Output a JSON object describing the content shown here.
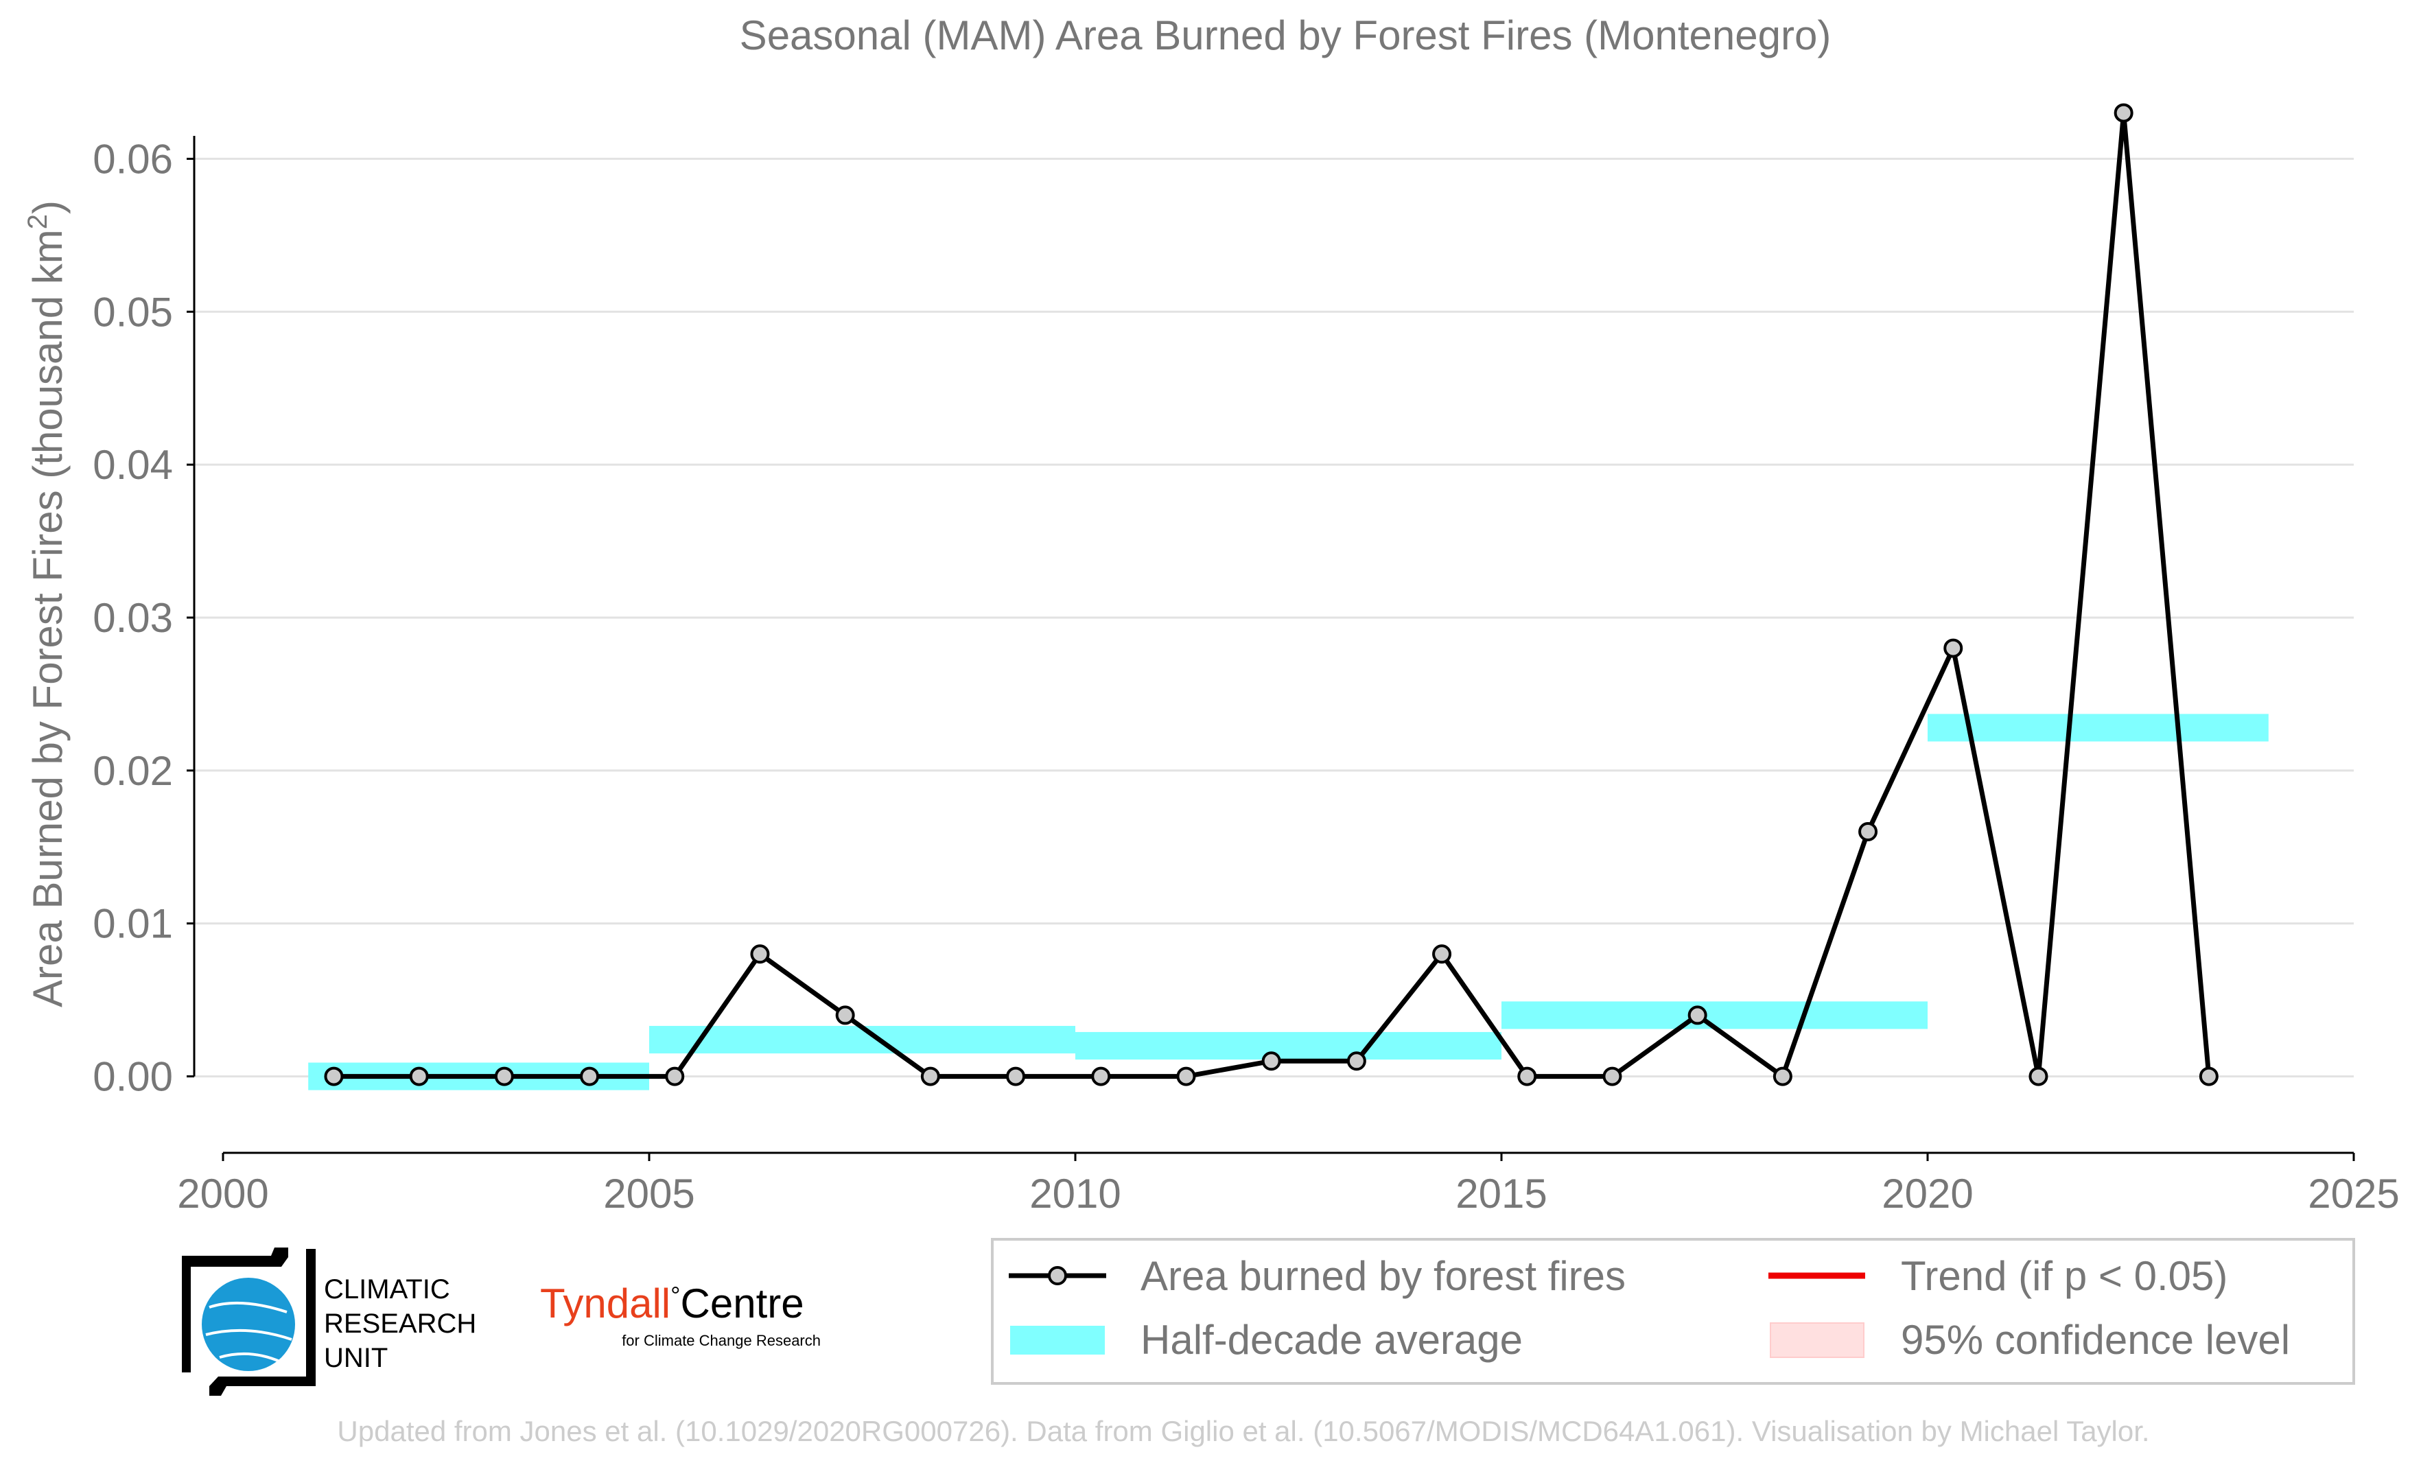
{
  "chart_data": {
    "type": "line",
    "title": "Seasonal (MAM) Area Burned by Forest Fires (Montenegro)",
    "xlabel": "",
    "ylabel": "Area Burned by Forest Fires (thousand km",
    "ylabel_superscript": "2",
    "ylabel_close": ")",
    "xlim": [
      2000,
      2025
    ],
    "ylim": [
      -0.005,
      0.065
    ],
    "x_ticks": [
      2000,
      2005,
      2010,
      2015,
      2020,
      2025
    ],
    "x_tick_labels": [
      "2000",
      "2005",
      "2010",
      "2015",
      "2020",
      "2025"
    ],
    "y_ticks": [
      0.0,
      0.01,
      0.02,
      0.03,
      0.04,
      0.05,
      0.06
    ],
    "y_tick_labels": [
      "0.00",
      "0.01",
      "0.02",
      "0.03",
      "0.04",
      "0.05",
      "0.06"
    ],
    "grid": true,
    "series": [
      {
        "name": "Area burned by forest fires",
        "color": "#000000",
        "marker_color": "#cccccc",
        "x": [
          2001.3,
          2002.3,
          2003.3,
          2004.3,
          2005.3,
          2006.3,
          2007.3,
          2008.3,
          2009.3,
          2010.3,
          2011.3,
          2012.3,
          2013.3,
          2014.3,
          2015.3,
          2016.3,
          2017.3,
          2018.3,
          2019.3,
          2020.3,
          2021.3,
          2022.3,
          2023.3
        ],
        "y": [
          0.0,
          0.0,
          0.0,
          0.0,
          0.0,
          0.008,
          0.004,
          0.0,
          0.0,
          0.0,
          0.0,
          0.001,
          0.001,
          0.008,
          0.0,
          0.0,
          0.004,
          0.0,
          0.016,
          0.028,
          0.0,
          0.063,
          0.0
        ]
      }
    ],
    "half_decade_average": {
      "name": "Half-decade average",
      "color": "#80ffff",
      "periods": [
        {
          "start": 2001,
          "end": 2005,
          "value": 0.0
        },
        {
          "start": 2005,
          "end": 2010,
          "value": 0.0024
        },
        {
          "start": 2010,
          "end": 2015,
          "value": 0.002
        },
        {
          "start": 2015,
          "end": 2020,
          "value": 0.004
        },
        {
          "start": 2020,
          "end": 2024,
          "value": 0.0228
        }
      ]
    },
    "legend": {
      "placement": "bottom-right",
      "items": [
        {
          "label": "Area burned by forest fires",
          "kind": "line-marker",
          "color": "#000000"
        },
        {
          "label": "Trend (if p < 0.05)",
          "kind": "line",
          "color": "#ee0000"
        },
        {
          "label": "Half-decade average",
          "kind": "band",
          "color": "#80ffff"
        },
        {
          "label": "95% confidence level",
          "kind": "patch",
          "color": "#ffe0e0"
        }
      ]
    }
  },
  "logos": {
    "cru_line1": "CLIMATIC",
    "cru_line2": "RESEARCH",
    "cru_line3": "UNIT",
    "tyndall_word1": "Tyndall",
    "tyndall_degree": "°",
    "tyndall_word2": "Centre",
    "tyndall_sub": "for Climate Change Research",
    "tyndall_color": "#e8401c",
    "cru_globe_color": "#1a9ad6"
  },
  "footer": "Updated from Jones et al. (10.1029/2020RG000726). Data from Giglio et al. (10.5067/MODIS/MCD64A1.061). Visualisation by Michael Taylor."
}
